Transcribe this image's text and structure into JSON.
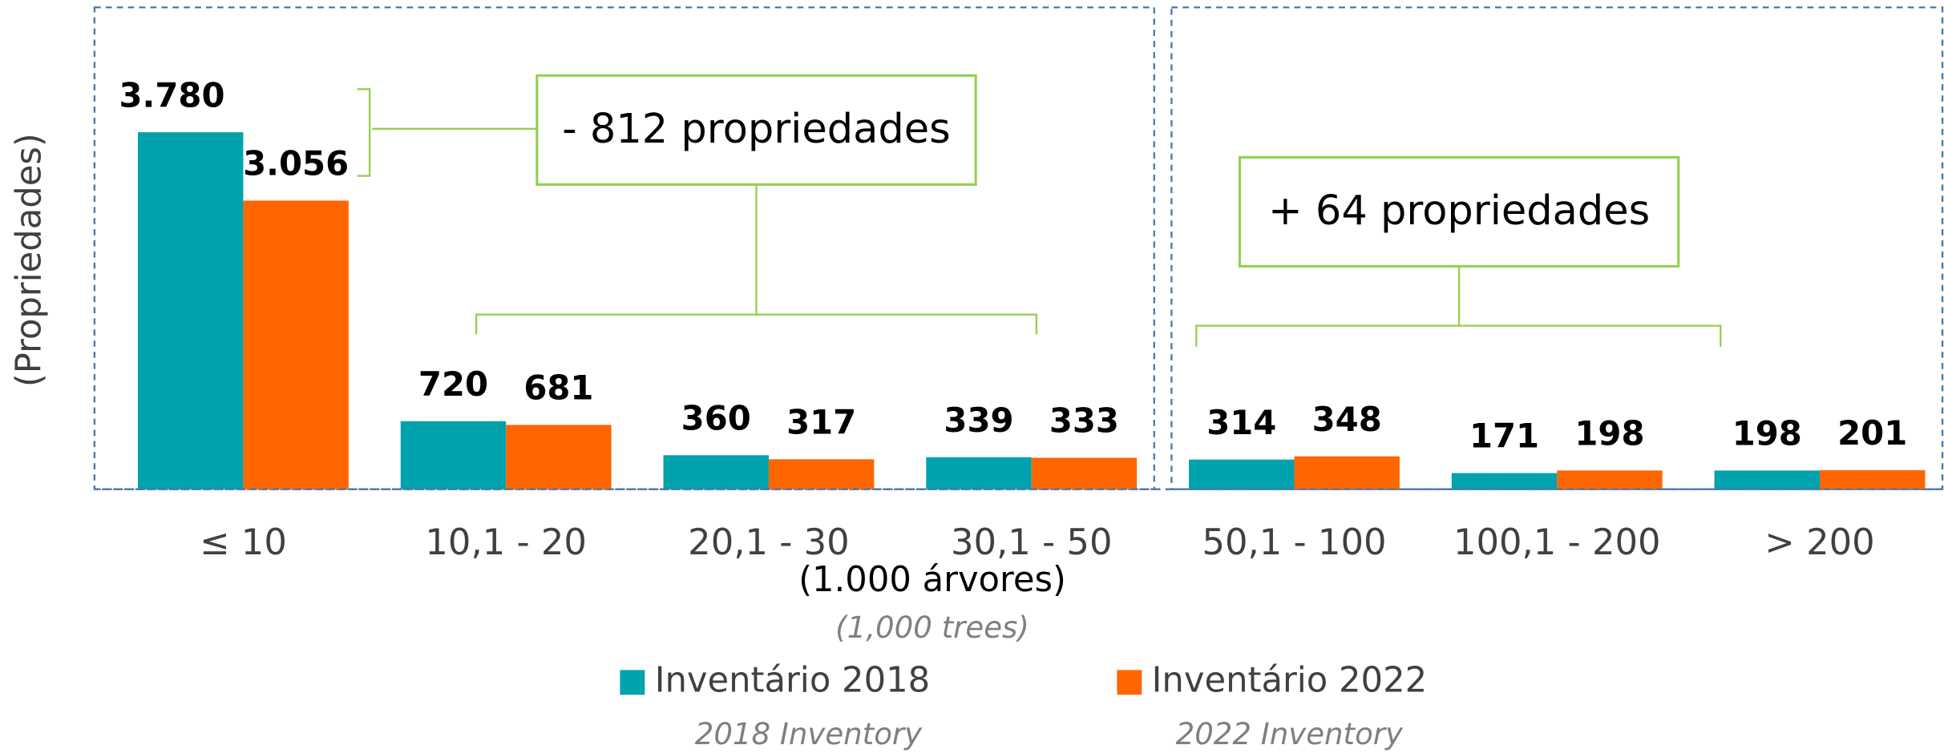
{
  "chart_data": {
    "type": "bar",
    "y_label": "(Propriedades)",
    "x_label": "(1.000 árvores)",
    "x_label_en": "(1,000 trees)",
    "categories": [
      "≤  10",
      "10,1 - 20",
      "20,1 - 30",
      "30,1 - 50",
      "50,1 - 100",
      "100,1 - 200",
      "> 200"
    ],
    "series": [
      {
        "name": "Inventário 2018",
        "name_en": "2018 Inventory",
        "color": "#00a3ad",
        "values": [
          3780,
          720,
          360,
          339,
          314,
          171,
          198
        ],
        "value_labels": [
          "3.780",
          "720",
          "360",
          "339",
          "314",
          "171",
          "198"
        ]
      },
      {
        "name": "Inventário 2022",
        "name_en": "2022 Inventory",
        "color": "#ff6600",
        "values": [
          3056,
          681,
          317,
          333,
          348,
          198,
          201
        ],
        "value_labels": [
          "3.056",
          "681",
          "317",
          "333",
          "348",
          "198",
          "201"
        ]
      }
    ],
    "annotations": [
      "- 812 propriedades",
      "+ 64 propriedades"
    ],
    "ylim": [
      0,
      4000
    ]
  }
}
